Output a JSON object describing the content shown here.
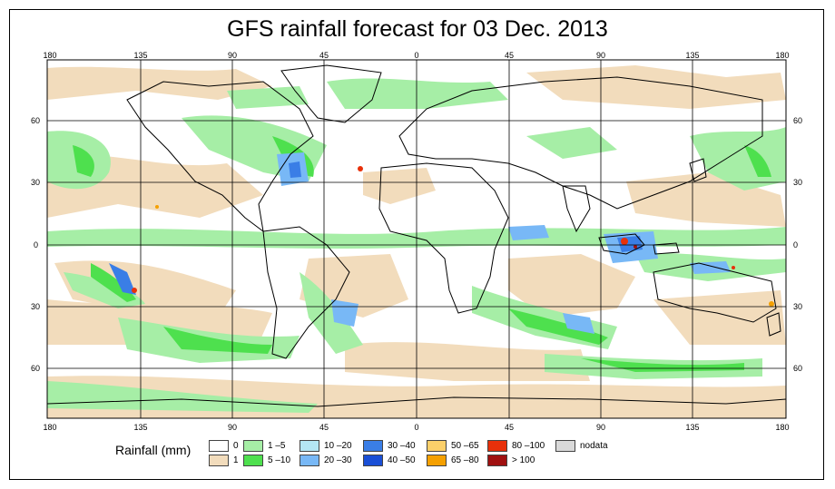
{
  "title": "GFS rainfall forecast for 03 Dec. 2013",
  "longitude_ticks": [
    "180",
    "135",
    "90",
    "45",
    "0",
    "45",
    "90",
    "135",
    "180"
  ],
  "latitude_ticks": [
    "60",
    "30",
    "0",
    "30",
    "60"
  ],
  "legend": {
    "title": "Rainfall (mm)",
    "items": [
      {
        "label": "0",
        "color": "#ffffff"
      },
      {
        "label": "1",
        "color": "#f2dcbc"
      },
      {
        "label": "1 –5",
        "color": "#a6eea6"
      },
      {
        "label": "5 –10",
        "color": "#4ee04e"
      },
      {
        "label": "10 –20",
        "color": "#b4e6f4"
      },
      {
        "label": "20 –30",
        "color": "#78b8f6"
      },
      {
        "label": "30 –40",
        "color": "#3a7ee6"
      },
      {
        "label": "40 –50",
        "color": "#1a4fd6"
      },
      {
        "label": "50 –65",
        "color": "#fcd06a"
      },
      {
        "label": "65 –80",
        "color": "#f5a000"
      },
      {
        "label": "80 –100",
        "color": "#e8300a"
      },
      {
        "label": "> 100",
        "color": "#a01010"
      },
      {
        "label": "nodata",
        "color": "#d9d9d9"
      }
    ]
  }
}
